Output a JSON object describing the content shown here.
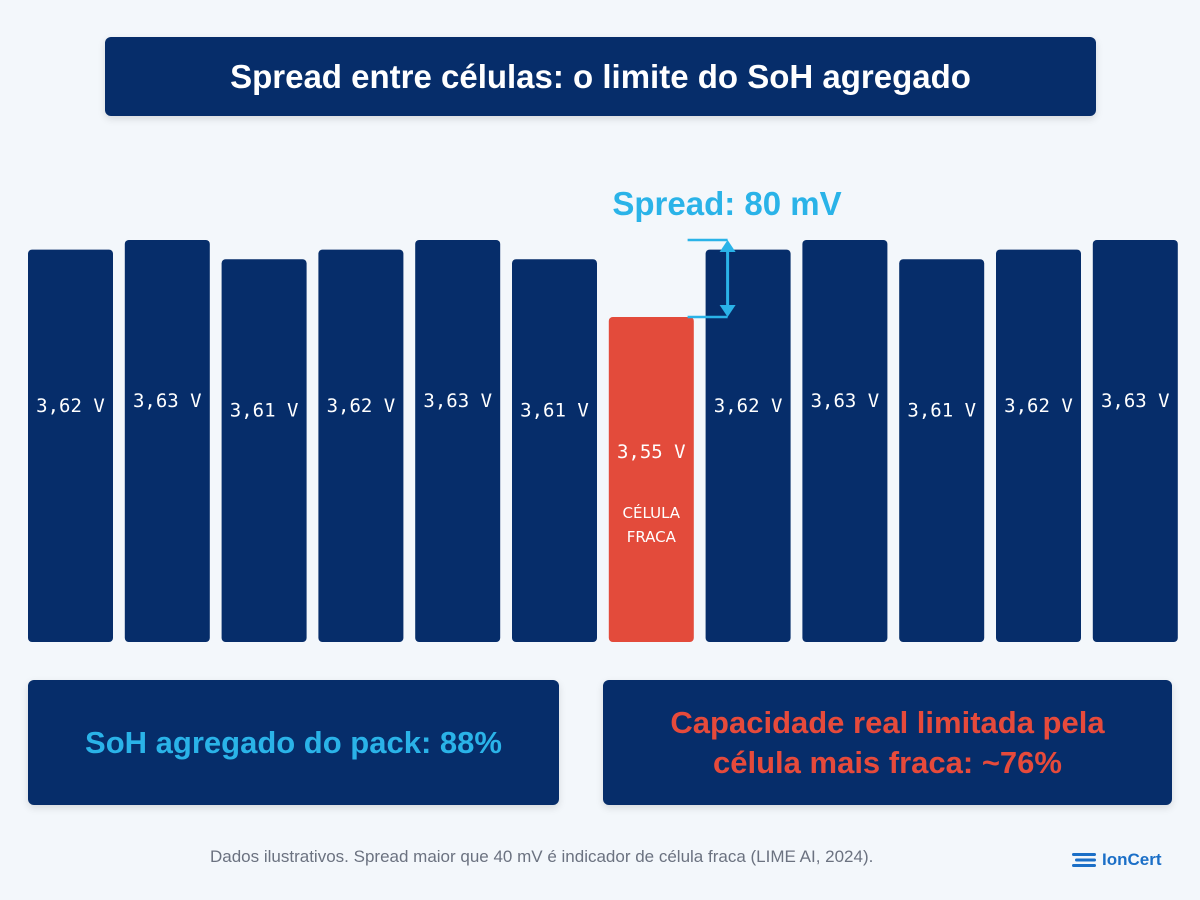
{
  "title": "Spread entre células: o limite do SoH agregado",
  "chart_data": {
    "type": "bar",
    "categories": [
      "",
      "",
      "",
      "",
      "",
      "",
      "",
      "",
      "",
      "",
      "",
      ""
    ],
    "values": [
      3.62,
      3.63,
      3.61,
      3.62,
      3.63,
      3.61,
      3.55,
      3.62,
      3.63,
      3.61,
      3.62,
      3.63
    ],
    "labels": [
      "3,62 V",
      "3,63 V",
      "3,61 V",
      "3,62 V",
      "3,63 V",
      "3,61 V",
      "3,55 V",
      "3,62 V",
      "3,63 V",
      "3,61 V",
      "3,62 V",
      "3,63 V"
    ],
    "unit": "V",
    "weak_index": 6,
    "weak_label_lines": [
      "CÉLULA",
      "FRACA"
    ],
    "spread_label": "Spread: 80 mV",
    "colors": {
      "normal": "#062d6a",
      "weak": "#e34b3b",
      "spread": "#2ab3e8"
    }
  },
  "summary": {
    "pack_soh": "SoH agregado do pack: 88%",
    "real_capacity_line1": "Capacidade real limitada pela",
    "real_capacity_line2": "célula mais fraca: ~76%"
  },
  "footnote": "Dados ilustrativos. Spread maior que 40 mV é indicador de célula fraca (LIME AI, 2024).",
  "brand": {
    "name": "IonCert",
    "logo_icon": "ioncert-logo-icon"
  }
}
